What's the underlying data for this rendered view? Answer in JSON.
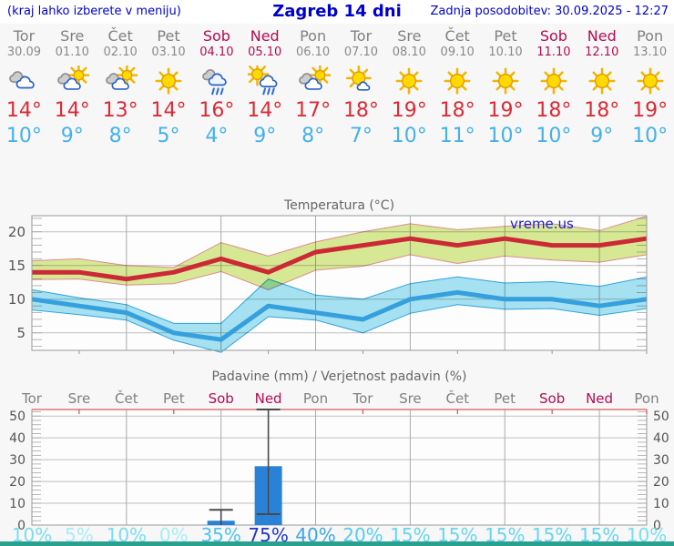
{
  "header": {
    "left_note": "(kraj lahko izberete v meniju)",
    "title": "Zagreb 14 dni",
    "updated": "Zadnja posodobitev: 30.09.2025 - 12:27"
  },
  "watermark": "vreme.us",
  "days": [
    {
      "name": "Tor",
      "date": "30.09",
      "weekend": false,
      "icon": "cloudy",
      "tmax": 14,
      "tmin": 10
    },
    {
      "name": "Sre",
      "date": "01.10",
      "weekend": false,
      "icon": "partly-cloudy",
      "tmax": 14,
      "tmin": 9
    },
    {
      "name": "Čet",
      "date": "02.10",
      "weekend": false,
      "icon": "partly-cloudy",
      "tmax": 13,
      "tmin": 8
    },
    {
      "name": "Pet",
      "date": "03.10",
      "weekend": false,
      "icon": "sunny",
      "tmax": 14,
      "tmin": 5
    },
    {
      "name": "Sob",
      "date": "04.10",
      "weekend": true,
      "icon": "rain",
      "tmax": 16,
      "tmin": 4
    },
    {
      "name": "Ned",
      "date": "05.10",
      "weekend": true,
      "icon": "sun-rain",
      "tmax": 14,
      "tmin": 9
    },
    {
      "name": "Pon",
      "date": "06.10",
      "weekend": false,
      "icon": "partly-cloudy",
      "tmax": 17,
      "tmin": 8
    },
    {
      "name": "Tor",
      "date": "07.10",
      "weekend": false,
      "icon": "mostly-sunny",
      "tmax": 18,
      "tmin": 7
    },
    {
      "name": "Sre",
      "date": "08.10",
      "weekend": false,
      "icon": "sunny",
      "tmax": 19,
      "tmin": 10
    },
    {
      "name": "Čet",
      "date": "09.10",
      "weekend": false,
      "icon": "sunny",
      "tmax": 18,
      "tmin": 11
    },
    {
      "name": "Pet",
      "date": "10.10",
      "weekend": false,
      "icon": "sunny",
      "tmax": 19,
      "tmin": 10
    },
    {
      "name": "Sob",
      "date": "11.10",
      "weekend": true,
      "icon": "sunny",
      "tmax": 18,
      "tmin": 10
    },
    {
      "name": "Ned",
      "date": "12.10",
      "weekend": true,
      "icon": "sunny",
      "tmax": 18,
      "tmin": 9
    },
    {
      "name": "Pon",
      "date": "13.10",
      "weekend": false,
      "icon": "sunny",
      "tmax": 19,
      "tmin": 10
    }
  ],
  "chart_data": [
    {
      "id": "temperature",
      "type": "line",
      "title": "Temperatura (°C)",
      "x_labels": [
        "Tor 30.09",
        "Sre 01.10",
        "Čet 02.10",
        "Pet 03.10",
        "Sob 04.10",
        "Ned 05.10",
        "Pon 06.10",
        "Tor 07.10",
        "Sre 08.10",
        "Čet 09.10",
        "Pet 10.10",
        "Sob 11.10",
        "Ned 12.10",
        "Pon 13.10"
      ],
      "ylim": [
        2.4,
        22.4
      ],
      "yticks": [
        5,
        10,
        15,
        20
      ],
      "grid": true,
      "series": [
        {
          "name": "max-temperature",
          "values": [
            14,
            14,
            13,
            14,
            16,
            14,
            17,
            18,
            19,
            18,
            19,
            18,
            18,
            19
          ],
          "color": "#cc2936"
        },
        {
          "name": "min-temperature",
          "values": [
            10,
            9,
            8,
            5,
            4,
            9,
            8,
            7,
            10,
            11,
            10,
            10,
            9,
            10
          ],
          "color": "#35a0dd"
        }
      ],
      "bands": [
        {
          "name": "max-range",
          "upper": [
            15.7,
            16,
            15,
            14.7,
            18.4,
            16.4,
            18.5,
            20,
            21.2,
            20.3,
            20.8,
            21.2,
            20.2,
            22.3
          ],
          "lower": [
            12.9,
            13,
            12.1,
            12.3,
            14.1,
            11.4,
            14.3,
            14.9,
            16.6,
            15.3,
            16.4,
            15.8,
            15.5,
            16.6
          ],
          "fill": "#d9ea96",
          "edge": "#e08c8c"
        },
        {
          "name": "min-range",
          "upper": [
            11.4,
            10.2,
            9.2,
            6.4,
            6.4,
            13,
            10.6,
            10,
            12.3,
            13.3,
            12.4,
            12.6,
            11.9,
            13.3
          ],
          "lower": [
            8.4,
            7.7,
            6.9,
            3.9,
            2.1,
            7.4,
            6.9,
            5,
            7.9,
            9.2,
            8.5,
            8.6,
            7.6,
            8.6
          ],
          "fill": "#a6e3f2",
          "edge": "#2fa3e0"
        }
      ]
    },
    {
      "id": "precipitation",
      "type": "bar",
      "title": "Padavine (mm) / Verjetnost padavin (%)",
      "day_labels": [
        "Tor",
        "Sre",
        "Čet",
        "Pet",
        "Sob",
        "Ned",
        "Pon",
        "Tor",
        "Sre",
        "Čet",
        "Pet",
        "Sob",
        "Ned",
        "Pon"
      ],
      "ylim": [
        0,
        53
      ],
      "yticks": [
        0,
        10,
        20,
        30,
        40,
        50
      ],
      "grid": true,
      "bars_mm": [
        0,
        0,
        0,
        0,
        2,
        27,
        0,
        0,
        0,
        0,
        0,
        0,
        0,
        0
      ],
      "whisker_low": [
        null,
        null,
        null,
        null,
        0,
        5,
        null,
        null,
        null,
        null,
        null,
        null,
        null,
        null
      ],
      "whisker_high": [
        null,
        null,
        null,
        null,
        7,
        53,
        null,
        null,
        null,
        null,
        null,
        null,
        null,
        null
      ],
      "probability_percent": [
        10,
        5,
        10,
        0,
        35,
        75,
        40,
        20,
        15,
        15,
        15,
        15,
        15,
        10
      ],
      "probability_colors": [
        "#79dcf4",
        "#a8ecf9",
        "#79dcf4",
        "#a8ecf9",
        "#4fc3ef",
        "#2233cc",
        "#3da6ea",
        "#57cbf0",
        "#67d4f2",
        "#67d4f2",
        "#67d4f2",
        "#67d4f2",
        "#67d4f2",
        "#79dcf4"
      ],
      "bar_color": "#2a82d8"
    }
  ],
  "colors": {
    "accent_blue": "#0000cc",
    "weekend": "#b30c51",
    "weekday": "#808080",
    "tmax": "#d92b38",
    "tmin": "#45b1e9",
    "footer_bar": "#2aa18f"
  }
}
